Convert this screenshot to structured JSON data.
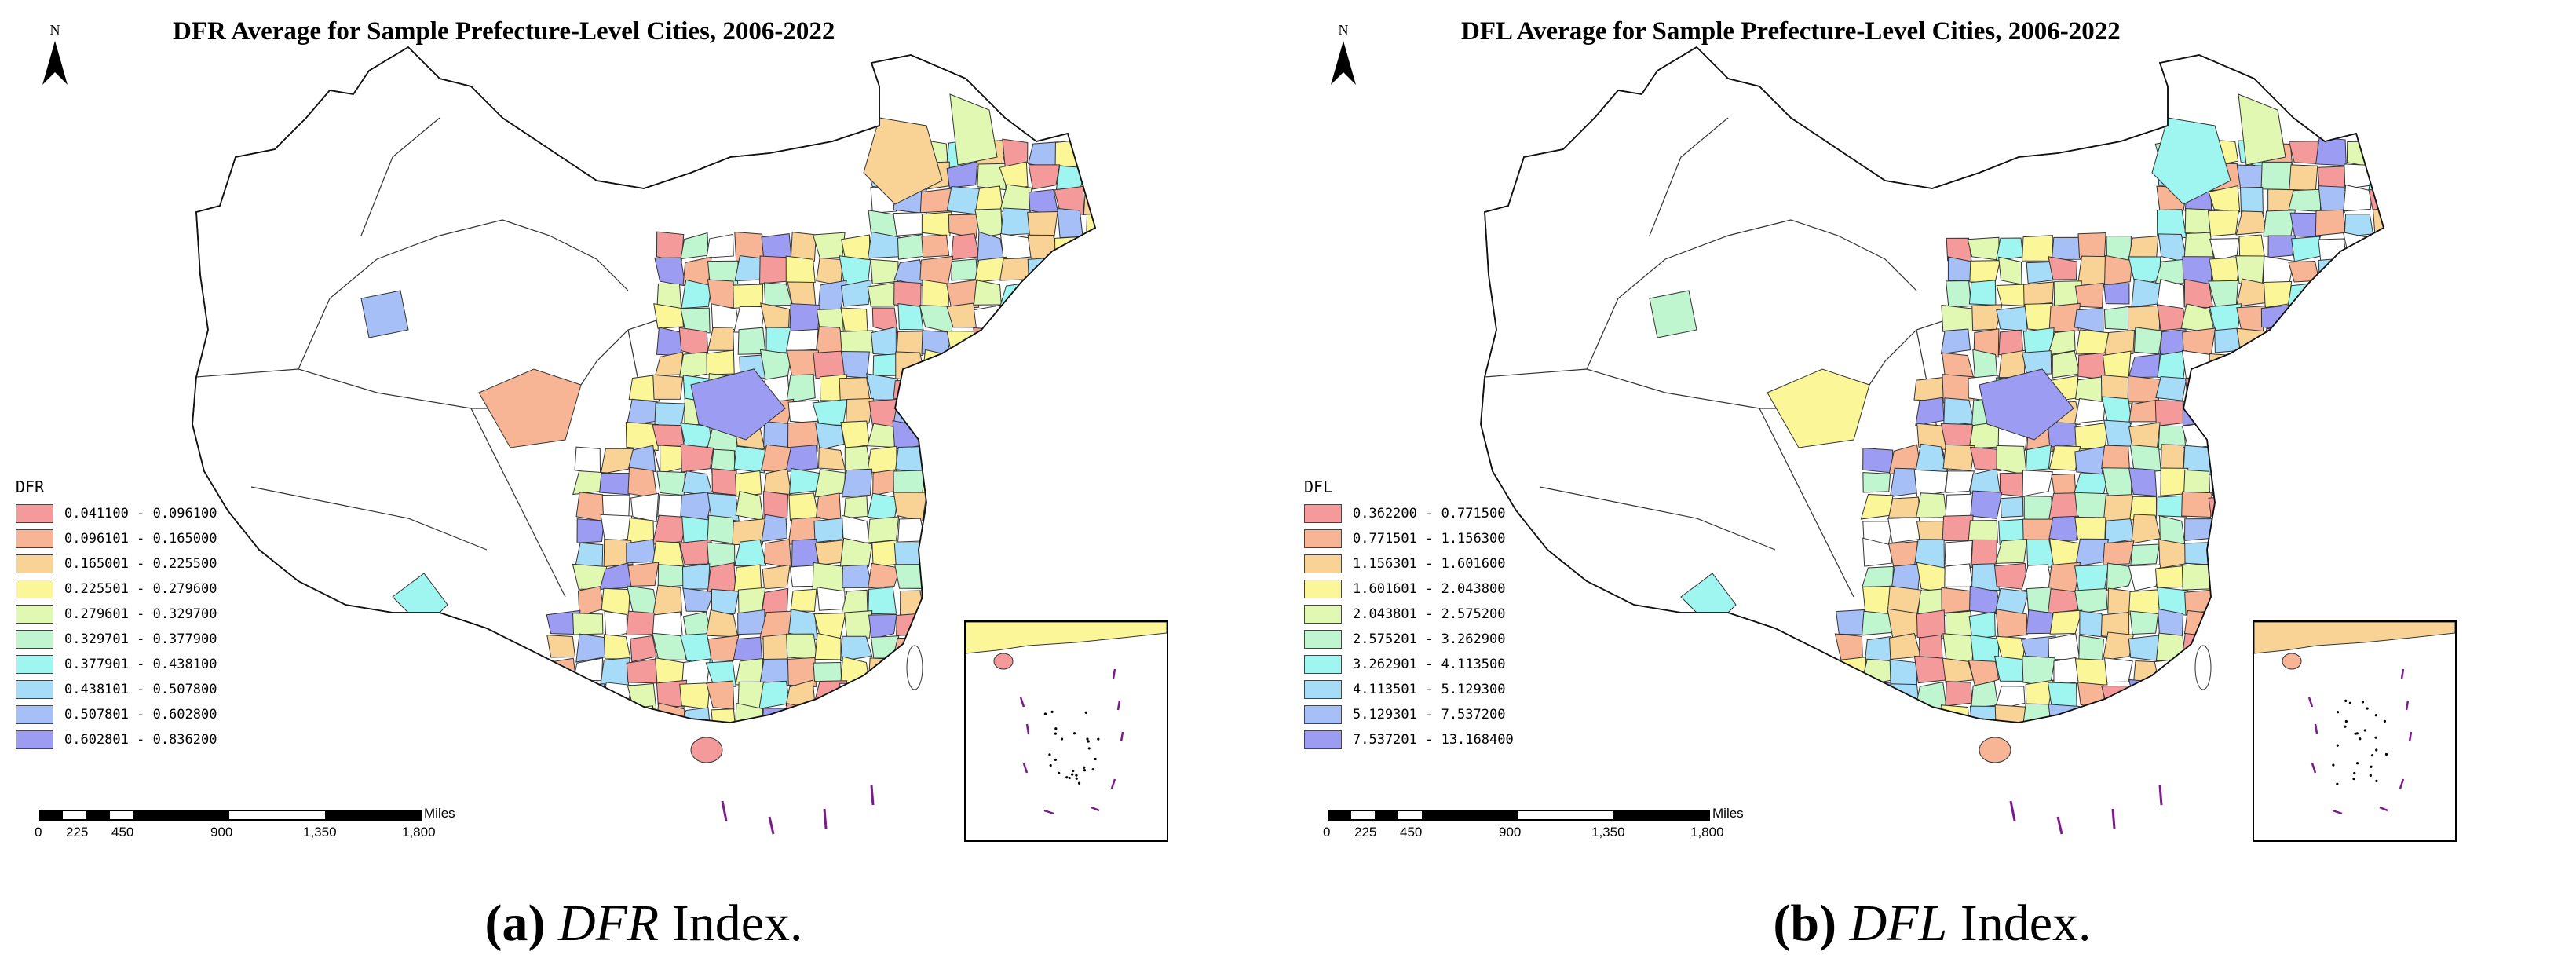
{
  "panels": [
    {
      "title": "DFR Average for Sample Prefecture-Level Cities, 2006-2022",
      "north_label": "N",
      "legend_title": "DFR",
      "legend": [
        {
          "label": "0.041100 - 0.096100",
          "color": "#f59a9a"
        },
        {
          "label": "0.096101 - 0.165000",
          "color": "#f7b595"
        },
        {
          "label": "0.165001 - 0.225500",
          "color": "#f9d396"
        },
        {
          "label": "0.225501 - 0.279600",
          "color": "#fbf798"
        },
        {
          "label": "0.279601 - 0.329700",
          "color": "#e1f8b3"
        },
        {
          "label": "0.329701 - 0.377900",
          "color": "#bff5cf"
        },
        {
          "label": "0.377901 - 0.438100",
          "color": "#9ff6f0"
        },
        {
          "label": "0.438101 - 0.507800",
          "color": "#a6dcf7"
        },
        {
          "label": "0.507801 - 0.602800",
          "color": "#a6bff6"
        },
        {
          "label": "0.602801 - 0.836200",
          "color": "#9c9cf3"
        }
      ],
      "scale": {
        "unit": "Miles",
        "ticks": [
          "0",
          "225",
          "450",
          "900",
          "1,350",
          "1,800"
        ]
      },
      "caption": {
        "letter": "(a)",
        "index": "DFR",
        "suffix": "Index."
      }
    },
    {
      "title": "DFL Average for Sample Prefecture-Level Cities, 2006-2022",
      "north_label": "N",
      "legend_title": "DFL",
      "legend": [
        {
          "label": "0.362200 - 0.771500",
          "color": "#f59a9a"
        },
        {
          "label": "0.771501 - 1.156300",
          "color": "#f7b595"
        },
        {
          "label": "1.156301 - 1.601600",
          "color": "#f9d396"
        },
        {
          "label": "1.601601 - 2.043800",
          "color": "#fbf798"
        },
        {
          "label": "2.043801 - 2.575200",
          "color": "#e1f8b3"
        },
        {
          "label": "2.575201 - 3.262900",
          "color": "#bff5cf"
        },
        {
          "label": "3.262901 - 4.113500",
          "color": "#9ff6f0"
        },
        {
          "label": "4.113501 - 5.129300",
          "color": "#a6dcf7"
        },
        {
          "label": "5.129301 - 7.537200",
          "color": "#a6bff6"
        },
        {
          "label": "7.537201 - 13.168400",
          "color": "#9c9cf3"
        }
      ],
      "scale": {
        "unit": "Miles",
        "ticks": [
          "0",
          "225",
          "450",
          "900",
          "1,350",
          "1,800"
        ]
      },
      "caption": {
        "letter": "(b)",
        "index": "DFL",
        "suffix": "Index."
      }
    }
  ]
}
